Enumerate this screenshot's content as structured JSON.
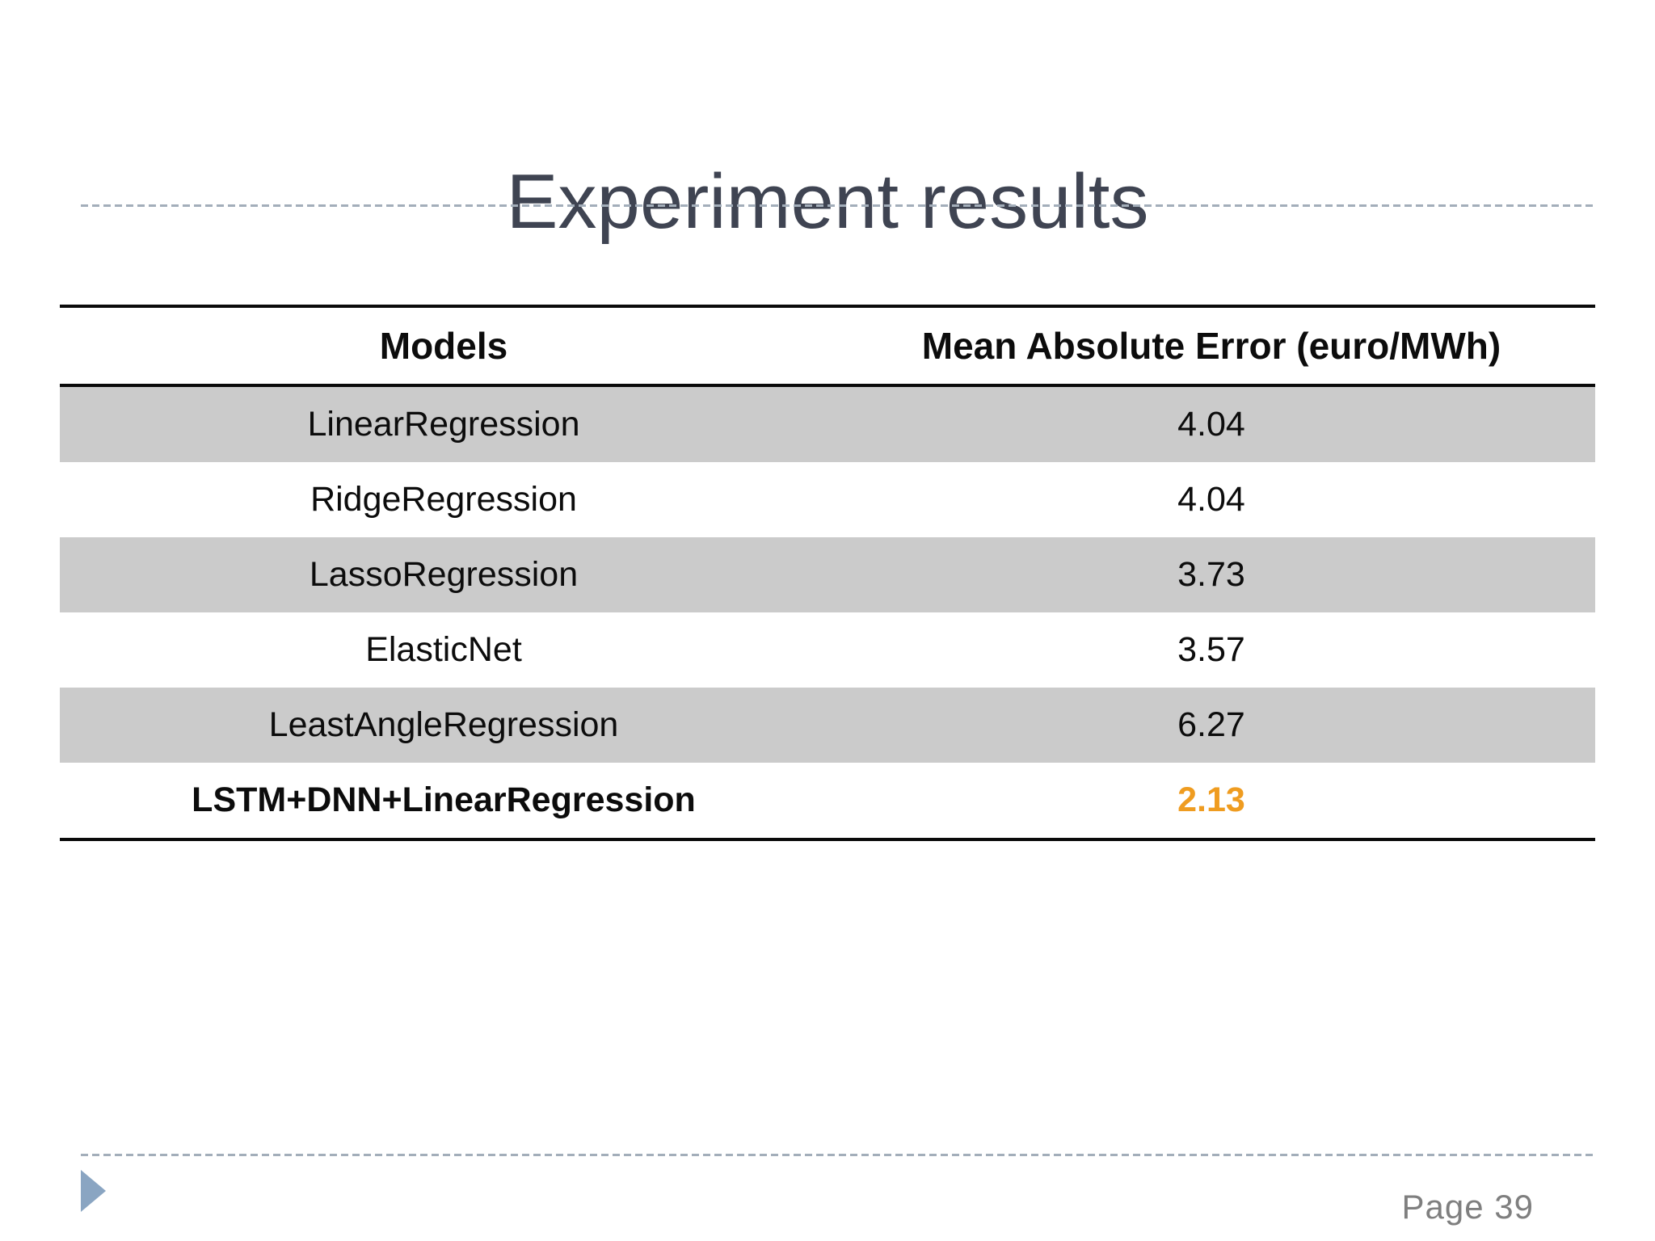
{
  "slide": {
    "title": "Experiment results",
    "page_label": "Page 39"
  },
  "table": {
    "columns": [
      "Models",
      "Mean Absolute Error (euro/MWh)"
    ],
    "rows": [
      {
        "model": "LinearRegression",
        "mae": "4.04",
        "highlight": false
      },
      {
        "model": "RidgeRegression",
        "mae": "4.04",
        "highlight": false
      },
      {
        "model": "LassoRegression",
        "mae": "3.73",
        "highlight": false
      },
      {
        "model": "ElasticNet",
        "mae": "3.57",
        "highlight": false
      },
      {
        "model": "LeastAngleRegression",
        "mae": "6.27",
        "highlight": false
      },
      {
        "model": "LSTM+DNN+LinearRegression",
        "mae": "2.13",
        "highlight": true
      }
    ]
  },
  "icons": {
    "triangle_bullet": "right-pointing-triangle"
  },
  "colors": {
    "title_text": "#3f4452",
    "table_border": "#0a0a0a",
    "row_stripe": "#cbcbcb",
    "highlight_value": "#ef9c20",
    "dashed_rule": "#a3aeba",
    "triangle_bullet": "#8aa5c2",
    "page_label": "#7f7f7f",
    "background": "#ffffff"
  }
}
